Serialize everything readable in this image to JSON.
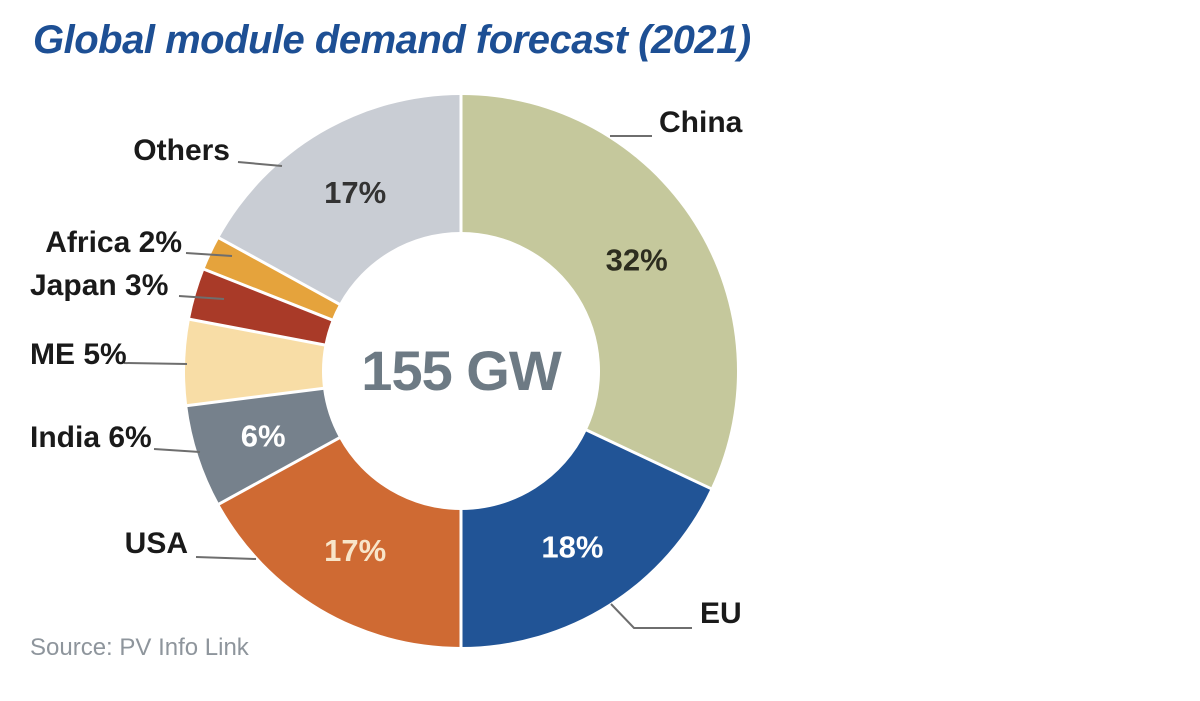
{
  "title": "Global module demand forecast (2021)",
  "center_label": "155 GW",
  "source": "Source: PV Info Link",
  "chart_data": {
    "type": "pie",
    "subtype": "donut",
    "title": "Global module demand forecast (2021)",
    "center_total": "155 GW",
    "unit": "%",
    "direction": "clockwise",
    "start_angle_deg": 0,
    "slices": [
      {
        "label": "China",
        "value": 32,
        "color": "#c5c89c",
        "pct_label": "32%",
        "pct_label_color": "#2d2d1f"
      },
      {
        "label": "EU",
        "value": 18,
        "color": "#215496",
        "pct_label": "18%",
        "pct_label_color": "#ffffff"
      },
      {
        "label": "USA",
        "value": 17,
        "color": "#cf6a33",
        "pct_label": "17%",
        "pct_label_color": "#f8e5c9"
      },
      {
        "label": "India",
        "value": 6,
        "color": "#76818c",
        "pct_label": "6%",
        "pct_label_color": "#ffffff"
      },
      {
        "label": "ME",
        "value": 5,
        "color": "#f8dda6",
        "pct_label": null,
        "pct_label_color": null
      },
      {
        "label": "Japan",
        "value": 3,
        "color": "#a93a28",
        "pct_label": null,
        "pct_label_color": null
      },
      {
        "label": "Africa",
        "value": 2,
        "color": "#e5a33c",
        "pct_label": null,
        "pct_label_color": null
      },
      {
        "label": "Others",
        "value": 17,
        "color": "#c9cdd4",
        "pct_label": "17%",
        "pct_label_color": "#333333"
      }
    ]
  },
  "callouts": {
    "china": "China",
    "eu": "EU",
    "usa": "USA",
    "india": "India 6%",
    "me": "ME 5%",
    "japan": "Japan 3%",
    "africa": "Africa 2%",
    "others": "Others"
  }
}
